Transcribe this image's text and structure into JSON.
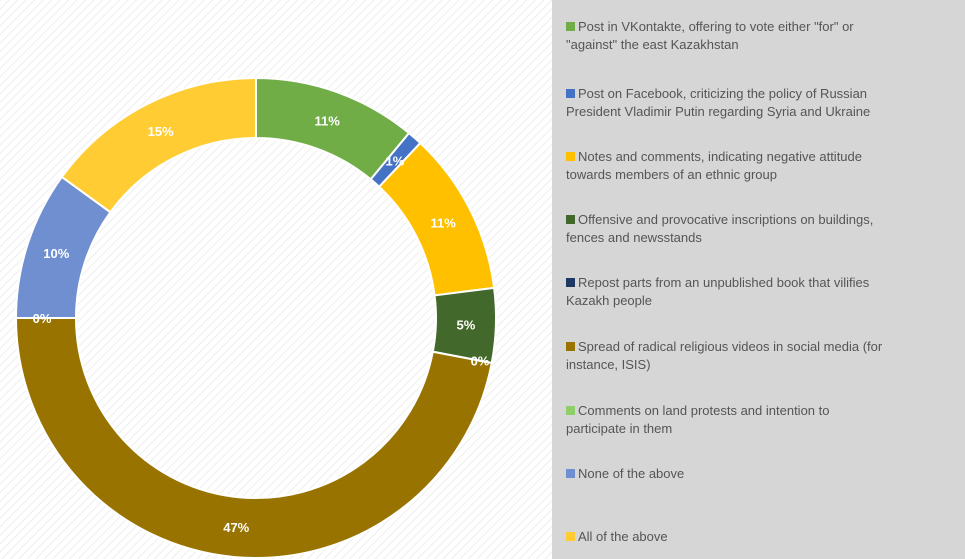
{
  "chart_data": {
    "type": "pie",
    "subtype": "donut",
    "title": "",
    "start_angle_deg": 0,
    "direction": "clockwise",
    "legend_position": "right",
    "slices": [
      {
        "label": "Post in VKontakte, offering to vote either \"for\" or \"against\" the east Kazakhstan",
        "value": 11,
        "display": "11%",
        "color": "#70ad47"
      },
      {
        "label": "Post on Facebook, criticizing the policy of Russian President Vladimir Putin regarding Syria and Ukraine",
        "value": 1,
        "display": "1%",
        "color": "#4472c4"
      },
      {
        "label": "Notes and comments, indicating negative attitude towards members of an ethnic group",
        "value": 11,
        "display": "11%",
        "color": "#ffc000"
      },
      {
        "label": "Offensive and provocative inscriptions on buildings, fences and newsstands",
        "value": 5,
        "display": "5%",
        "color": "#43682b"
      },
      {
        "label": "Repost parts from an unpublished book that vilifies Kazakh people",
        "value": 0,
        "display": "0%",
        "color": "#203864"
      },
      {
        "label": "Spread of radical religious videos in social media (for instance, ISIS)",
        "value": 47,
        "display": "47%",
        "color": "#997300"
      },
      {
        "label": "Comments on land protests and intention to participate in them",
        "value": 0,
        "display": "0%",
        "color": "#8fcf6a"
      },
      {
        "label": "None of the above",
        "value": 10,
        "display": "10%",
        "color": "#6f8fd0"
      },
      {
        "label": "All of the above",
        "value": 15,
        "display": "15%",
        "color": "#ffcc33"
      }
    ],
    "legend_lines": [
      [
        "Post in VKontakte, offering to vote either \"for\" or",
        "\"against\" the east Kazakhstan"
      ],
      [
        "Post on Facebook, criticizing the policy of Russian",
        "President Vladimir Putin regarding Syria and Ukraine"
      ],
      [
        "Notes and comments, indicating negative attitude",
        "towards members of an ethnic group"
      ],
      [
        "Offensive and provocative inscriptions on buildings,",
        "fences and newsstands"
      ],
      [
        "Repost parts from an unpublished book that vilifies",
        "Kazakh people"
      ],
      [
        "Spread of radical religious videos in social media (for",
        "instance, ISIS)"
      ],
      [
        "Comments on land protests and intention to",
        "participate in them"
      ],
      [
        "None of the above"
      ],
      [
        "All of the above"
      ]
    ]
  }
}
